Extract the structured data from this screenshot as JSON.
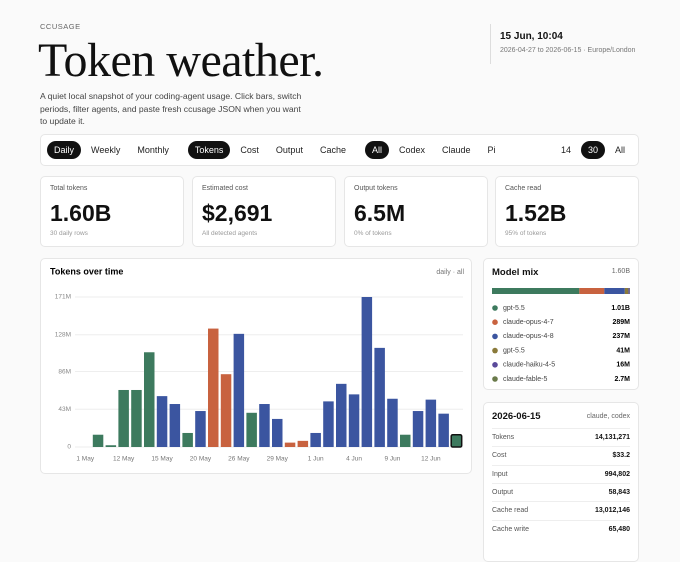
{
  "header": {
    "eyebrow": "CCUSAGE",
    "title": "Token weather.",
    "description": "A quiet local snapshot of your coding-agent usage. Click bars, switch periods, filter agents, and paste fresh ccusage JSON when you want to update it.",
    "datetime": "15 Jun, 10:04",
    "range": "2026-04-27 to 2026-06-15 · Europe/London"
  },
  "filters": [
    {
      "options": [
        "Daily",
        "Weekly",
        "Monthly"
      ],
      "active": 0
    },
    {
      "options": [
        "Tokens",
        "Cost",
        "Output",
        "Cache"
      ],
      "active": 0
    },
    {
      "options": [
        "All",
        "Codex",
        "Claude",
        "Pi"
      ],
      "active": 0
    },
    {
      "options": [
        "14",
        "30",
        "All"
      ],
      "active": 1
    }
  ],
  "stats": [
    {
      "label": "Total tokens",
      "value": "1.60B",
      "note": "30 daily rows"
    },
    {
      "label": "Estimated cost",
      "value": "$2,691",
      "note": "All detected agents"
    },
    {
      "label": "Output tokens",
      "value": "6.5M",
      "note": "0% of tokens"
    },
    {
      "label": "Cache read",
      "value": "1.52B",
      "note": "95% of tokens"
    }
  ],
  "chart_data": {
    "type": "bar",
    "title": "Tokens over time",
    "subtitle": "daily · all",
    "categories": [
      "1 May",
      null,
      null,
      "12 May",
      null,
      null,
      "15 May",
      null,
      null,
      "20 May",
      null,
      null,
      "26 May",
      null,
      null,
      "29 May",
      null,
      null,
      "1 Jun",
      null,
      null,
      "4 Jun",
      null,
      null,
      "9 Jun",
      null,
      null,
      "12 Jun",
      null,
      null
    ],
    "values": [
      0,
      14,
      2,
      65,
      65,
      108,
      58,
      49,
      16,
      41,
      135,
      83,
      129,
      39,
      49,
      32,
      5,
      7,
      16,
      52,
      72,
      60,
      171,
      113,
      55,
      14,
      41,
      54,
      38,
      14
    ],
    "colors": [
      "#3d7a5e",
      "#3d7a5e",
      "#3d7a5e",
      "#3d7a5e",
      "#3d7a5e",
      "#3d7a5e",
      "#3b55a0",
      "#3b55a0",
      "#3d7a5e",
      "#3b55a0",
      "#c8623f",
      "#c8623f",
      "#3b55a0",
      "#3d7a5e",
      "#3b55a0",
      "#3b55a0",
      "#c8623f",
      "#c8623f",
      "#3b55a0",
      "#3b55a0",
      "#3b55a0",
      "#3b55a0",
      "#3b55a0",
      "#3b55a0",
      "#3b55a0",
      "#3d7a5e",
      "#3b55a0",
      "#3b55a0",
      "#3b55a0",
      "#3d7a5e"
    ],
    "ylim": [
      0,
      171
    ],
    "yticks": [
      0,
      {
        "value": 43,
        "label": "43M"
      },
      {
        "value": 86,
        "label": "86M"
      },
      {
        "value": 128,
        "label": "128M"
      },
      {
        "value": 171,
        "label": "171M"
      }
    ],
    "grid": true,
    "selected": 29
  },
  "model_mix": {
    "title": "Model mix",
    "total": "1.60B",
    "series": [
      {
        "name": "gpt-5.5",
        "color": "#3d7a5e",
        "value": 1010000000,
        "value_label": "1.01B"
      },
      {
        "name": "claude-opus-4-7",
        "color": "#c8623f",
        "value": 289000000,
        "value_label": "289M"
      },
      {
        "name": "claude-opus-4-8",
        "color": "#3b55a0",
        "value": 237000000,
        "value_label": "237M"
      },
      {
        "name": "gpt-5.5",
        "color": "#8a7a3a",
        "value": 41000000,
        "value_label": "41M"
      },
      {
        "name": "claude-haiku-4-5",
        "color": "#5a4a9a",
        "value": 16000000,
        "value_label": "16M"
      },
      {
        "name": "claude-fable-5",
        "color": "#6a7a4a",
        "value": 2700000,
        "value_label": "2.7M"
      }
    ]
  },
  "detail": {
    "title": "2026-06-15",
    "agents": "claude, codex",
    "rows": [
      [
        "Tokens",
        "14,131,271"
      ],
      [
        "Cost",
        "$33.2"
      ],
      [
        "Input",
        "994,802"
      ],
      [
        "Output",
        "58,843"
      ],
      [
        "Cache read",
        "13,012,146"
      ],
      [
        "Cache write",
        "65,480"
      ]
    ]
  }
}
